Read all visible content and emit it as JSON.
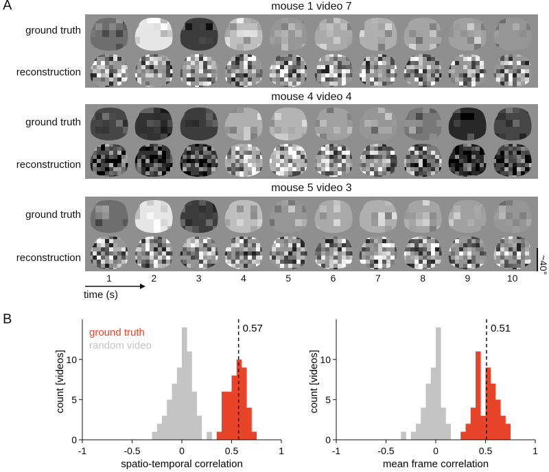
{
  "panel_labels": {
    "a": "A",
    "b": "B"
  },
  "panel_a": {
    "blocks": [
      {
        "title": "mouse 1 video 7",
        "row_top": "ground truth",
        "row_bottom": "reconstruction"
      },
      {
        "title": "mouse 4 video 4",
        "row_top": "ground truth",
        "row_bottom": "reconstruction"
      },
      {
        "title": "mouse 5 video 3",
        "row_top": "ground truth",
        "row_bottom": "reconstruction"
      }
    ],
    "frame_ticks": [
      "1",
      "2",
      "3",
      "4",
      "5",
      "6",
      "7",
      "8",
      "9",
      "10"
    ],
    "time_label": "time (s)",
    "scale_label": "~40°"
  },
  "chart_data": [
    {
      "type": "histogram",
      "title": "",
      "xlabel": "spatio-temporal correlation",
      "ylabel": "count [videos]",
      "xlim": [
        -1,
        1
      ],
      "ylim": [
        0,
        14.5
      ],
      "x_ticks": [
        "-1",
        "-0.5",
        "0",
        "0.5",
        "1"
      ],
      "y_ticks": [
        "0",
        "5",
        "10"
      ],
      "bin_width": 0.05,
      "series": [
        {
          "name": "random video",
          "color": "#c4c4c4",
          "bins": [
            [
              -0.275,
              1
            ],
            [
              -0.225,
              2
            ],
            [
              -0.175,
              3
            ],
            [
              -0.125,
              5
            ],
            [
              -0.075,
              7
            ],
            [
              -0.025,
              9
            ],
            [
              0.025,
              14
            ],
            [
              0.075,
              11
            ],
            [
              0.125,
              6
            ],
            [
              0.175,
              3
            ],
            [
              0.275,
              1
            ]
          ]
        },
        {
          "name": "ground truth",
          "color": "#e8442a",
          "bins": [
            [
              0.375,
              1
            ],
            [
              0.425,
              6
            ],
            [
              0.475,
              6
            ],
            [
              0.525,
              8
            ],
            [
              0.575,
              10
            ],
            [
              0.625,
              9
            ],
            [
              0.675,
              4
            ],
            [
              0.725,
              1
            ]
          ]
        }
      ],
      "reference_line": {
        "x": 0.57,
        "label": "0.57"
      },
      "legend": {
        "position": "top-left",
        "entries": [
          "ground truth",
          "random video"
        ]
      }
    },
    {
      "type": "histogram",
      "title": "",
      "xlabel": "mean frame correlation",
      "ylabel": "count [videos]",
      "xlim": [
        -1,
        1
      ],
      "ylim": [
        0,
        14.5
      ],
      "x_ticks": [
        "-1",
        "-0.5",
        "0",
        "0.5",
        "1"
      ],
      "y_ticks": [
        "0",
        "5",
        "10"
      ],
      "bin_width": 0.05,
      "series": [
        {
          "name": "random video",
          "color": "#c4c4c4",
          "bins": [
            [
              -0.325,
              1
            ],
            [
              -0.225,
              1
            ],
            [
              -0.175,
              2
            ],
            [
              -0.125,
              4
            ],
            [
              -0.075,
              7
            ],
            [
              -0.025,
              9
            ],
            [
              0.025,
              14
            ],
            [
              0.075,
              4
            ],
            [
              0.125,
              2
            ]
          ]
        },
        {
          "name": "ground truth",
          "color": "#e8442a",
          "bins": [
            [
              0.275,
              1
            ],
            [
              0.325,
              2
            ],
            [
              0.375,
              4
            ],
            [
              0.425,
              11
            ],
            [
              0.475,
              3
            ],
            [
              0.525,
              9
            ],
            [
              0.575,
              7
            ],
            [
              0.625,
              5
            ],
            [
              0.675,
              3
            ],
            [
              0.725,
              2
            ]
          ]
        }
      ],
      "reference_line": {
        "x": 0.51,
        "label": "0.51"
      },
      "legend": null
    }
  ]
}
